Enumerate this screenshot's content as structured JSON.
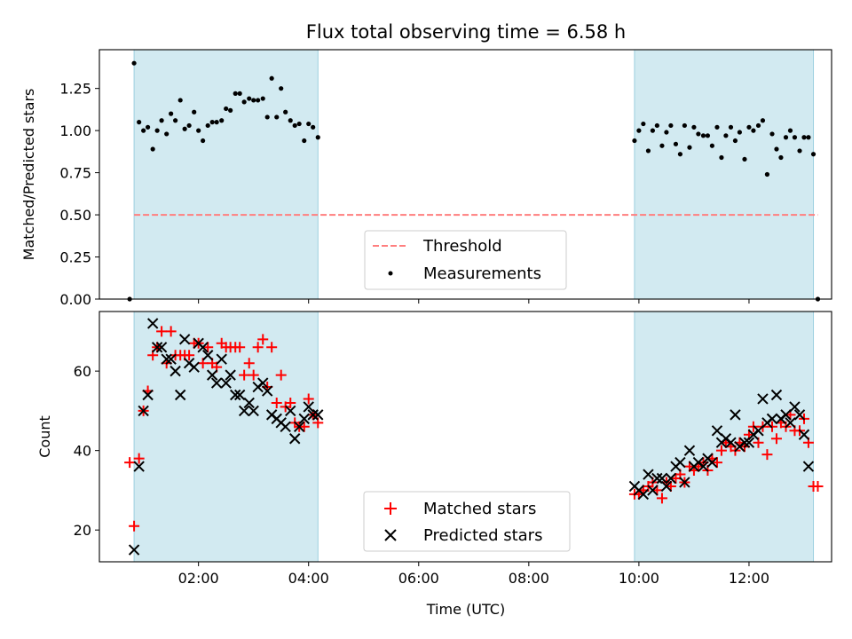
{
  "title": "Flux total observing time = 6.58 h",
  "colors": {
    "shade": "#add8e6",
    "threshold": "#ff7f7f",
    "matched": "#ff0000",
    "predicted": "#000000",
    "measurement": "#000000"
  },
  "chart_data": [
    {
      "type": "scatter",
      "ylabel": "Matched/Predicted stars",
      "ylim": [
        0,
        1.48
      ],
      "xlim_hours": [
        0.2,
        13.5
      ],
      "yticks": [
        "0.00",
        "0.25",
        "0.50",
        "0.75",
        "1.00",
        "1.25"
      ],
      "ytick_values": [
        0,
        0.25,
        0.5,
        0.75,
        1.0,
        1.25
      ],
      "shaded_intervals_hours": [
        [
          0.83,
          4.17
        ],
        [
          9.92,
          13.17
        ]
      ],
      "threshold": {
        "name": "Threshold",
        "value": 0.5,
        "x_hours": [
          0.83,
          13.25
        ]
      },
      "legend": {
        "placement": "lower-center",
        "entries": [
          "Threshold",
          "Measurements"
        ]
      },
      "series": [
        {
          "name": "Measurements",
          "points": [
            [
              0.75,
              0.0
            ],
            [
              0.83,
              1.4
            ],
            [
              0.92,
              1.05
            ],
            [
              1.0,
              1.0
            ],
            [
              1.08,
              1.02
            ],
            [
              1.17,
              0.89
            ],
            [
              1.25,
              1.0
            ],
            [
              1.33,
              1.06
            ],
            [
              1.42,
              0.98
            ],
            [
              1.5,
              1.1
            ],
            [
              1.58,
              1.06
            ],
            [
              1.67,
              1.18
            ],
            [
              1.75,
              1.01
            ],
            [
              1.83,
              1.03
            ],
            [
              1.92,
              1.11
            ],
            [
              2.0,
              1.0
            ],
            [
              2.08,
              0.94
            ],
            [
              2.17,
              1.03
            ],
            [
              2.25,
              1.05
            ],
            [
              2.33,
              1.05
            ],
            [
              2.42,
              1.06
            ],
            [
              2.5,
              1.13
            ],
            [
              2.58,
              1.12
            ],
            [
              2.67,
              1.22
            ],
            [
              2.75,
              1.22
            ],
            [
              2.83,
              1.17
            ],
            [
              2.92,
              1.19
            ],
            [
              3.0,
              1.18
            ],
            [
              3.08,
              1.18
            ],
            [
              3.17,
              1.19
            ],
            [
              3.25,
              1.08
            ],
            [
              3.33,
              1.31
            ],
            [
              3.42,
              1.08
            ],
            [
              3.5,
              1.25
            ],
            [
              3.58,
              1.11
            ],
            [
              3.67,
              1.06
            ],
            [
              3.75,
              1.03
            ],
            [
              3.83,
              1.04
            ],
            [
              3.92,
              0.94
            ],
            [
              4.0,
              1.04
            ],
            [
              4.08,
              1.02
            ],
            [
              4.17,
              0.96
            ],
            [
              9.92,
              0.94
            ],
            [
              10.0,
              1.0
            ],
            [
              10.08,
              1.04
            ],
            [
              10.17,
              0.88
            ],
            [
              10.25,
              1.0
            ],
            [
              10.33,
              1.03
            ],
            [
              10.42,
              0.91
            ],
            [
              10.5,
              0.99
            ],
            [
              10.58,
              1.03
            ],
            [
              10.67,
              0.92
            ],
            [
              10.75,
              0.86
            ],
            [
              10.83,
              1.03
            ],
            [
              10.92,
              0.9
            ],
            [
              11.0,
              1.02
            ],
            [
              11.08,
              0.98
            ],
            [
              11.17,
              0.97
            ],
            [
              11.25,
              0.97
            ],
            [
              11.33,
              0.91
            ],
            [
              11.42,
              1.02
            ],
            [
              11.5,
              0.84
            ],
            [
              11.58,
              0.97
            ],
            [
              11.67,
              1.02
            ],
            [
              11.75,
              0.94
            ],
            [
              11.83,
              0.99
            ],
            [
              11.92,
              0.83
            ],
            [
              12.0,
              1.02
            ],
            [
              12.08,
              1.0
            ],
            [
              12.17,
              1.03
            ],
            [
              12.25,
              1.06
            ],
            [
              12.33,
              0.74
            ],
            [
              12.42,
              0.98
            ],
            [
              12.5,
              0.89
            ],
            [
              12.58,
              0.84
            ],
            [
              12.67,
              0.96
            ],
            [
              12.75,
              1.0
            ],
            [
              12.83,
              0.96
            ],
            [
              12.92,
              0.88
            ],
            [
              13.0,
              0.96
            ],
            [
              13.08,
              0.96
            ],
            [
              13.17,
              0.86
            ],
            [
              13.25,
              0.0
            ]
          ]
        }
      ]
    },
    {
      "type": "scatter",
      "xlabel": "Time (UTC)",
      "ylabel": "Count",
      "ylim": [
        12,
        75
      ],
      "xlim_hours": [
        0.2,
        13.5
      ],
      "xticks": [
        "02:00",
        "04:00",
        "06:00",
        "08:00",
        "10:00",
        "12:00"
      ],
      "xtick_hours": [
        2,
        4,
        6,
        8,
        10,
        12
      ],
      "yticks": [
        "20",
        "40",
        "60"
      ],
      "ytick_values": [
        20,
        40,
        60
      ],
      "shaded_intervals_hours": [
        [
          0.83,
          4.17
        ],
        [
          9.92,
          13.17
        ]
      ],
      "legend": {
        "placement": "lower-center",
        "entries": [
          "Matched stars",
          "Predicted stars"
        ]
      },
      "series": [
        {
          "name": "Matched stars",
          "marker": "+",
          "points": [
            [
              0.75,
              37
            ],
            [
              0.83,
              21
            ],
            [
              0.92,
              38
            ],
            [
              1.0,
              50
            ],
            [
              1.08,
              55
            ],
            [
              1.17,
              64
            ],
            [
              1.25,
              66
            ],
            [
              1.33,
              70
            ],
            [
              1.42,
              62
            ],
            [
              1.5,
              70
            ],
            [
              1.58,
              64
            ],
            [
              1.67,
              64
            ],
            [
              1.75,
              64
            ],
            [
              1.83,
              64
            ],
            [
              1.92,
              67
            ],
            [
              2.0,
              67
            ],
            [
              2.08,
              62
            ],
            [
              2.17,
              66
            ],
            [
              2.25,
              62
            ],
            [
              2.33,
              61
            ],
            [
              2.42,
              67
            ],
            [
              2.5,
              66
            ],
            [
              2.58,
              66
            ],
            [
              2.67,
              66
            ],
            [
              2.75,
              66
            ],
            [
              2.83,
              59
            ],
            [
              2.92,
              62
            ],
            [
              3.0,
              59
            ],
            [
              3.08,
              66
            ],
            [
              3.17,
              68
            ],
            [
              3.25,
              56
            ],
            [
              3.33,
              66
            ],
            [
              3.42,
              52
            ],
            [
              3.5,
              59
            ],
            [
              3.58,
              51
            ],
            [
              3.67,
              52
            ],
            [
              3.75,
              47
            ],
            [
              3.83,
              46
            ],
            [
              3.92,
              46
            ],
            [
              4.0,
              53
            ],
            [
              4.08,
              49
            ],
            [
              4.17,
              47
            ],
            [
              9.92,
              29
            ],
            [
              10.0,
              29
            ],
            [
              10.08,
              30
            ],
            [
              10.17,
              31
            ],
            [
              10.25,
              32
            ],
            [
              10.33,
              30
            ],
            [
              10.42,
              28
            ],
            [
              10.5,
              32
            ],
            [
              10.58,
              31
            ],
            [
              10.67,
              33
            ],
            [
              10.75,
              34
            ],
            [
              10.83,
              32
            ],
            [
              10.92,
              36
            ],
            [
              11.0,
              35
            ],
            [
              11.08,
              36
            ],
            [
              11.17,
              37
            ],
            [
              11.25,
              35
            ],
            [
              11.33,
              38
            ],
            [
              11.42,
              37
            ],
            [
              11.5,
              40
            ],
            [
              11.58,
              42
            ],
            [
              11.67,
              41
            ],
            [
              11.75,
              40
            ],
            [
              11.83,
              42
            ],
            [
              11.92,
              41
            ],
            [
              12.0,
              44
            ],
            [
              12.08,
              46
            ],
            [
              12.17,
              42
            ],
            [
              12.25,
              46
            ],
            [
              12.33,
              39
            ],
            [
              12.42,
              46
            ],
            [
              12.5,
              43
            ],
            [
              12.58,
              47
            ],
            [
              12.67,
              46
            ],
            [
              12.75,
              49
            ],
            [
              12.83,
              45
            ],
            [
              12.92,
              45
            ],
            [
              13.0,
              48
            ],
            [
              13.08,
              42
            ],
            [
              13.17,
              31
            ],
            [
              13.25,
              31
            ]
          ]
        },
        {
          "name": "Predicted stars",
          "marker": "x",
          "points": [
            [
              0.83,
              15
            ],
            [
              0.92,
              36
            ],
            [
              1.0,
              50
            ],
            [
              1.08,
              54
            ],
            [
              1.17,
              72
            ],
            [
              1.25,
              66
            ],
            [
              1.33,
              66
            ],
            [
              1.42,
              63
            ],
            [
              1.5,
              63
            ],
            [
              1.58,
              60
            ],
            [
              1.67,
              54
            ],
            [
              1.75,
              68
            ],
            [
              1.83,
              62
            ],
            [
              1.92,
              61
            ],
            [
              2.0,
              67
            ],
            [
              2.08,
              66
            ],
            [
              2.17,
              64
            ],
            [
              2.25,
              59
            ],
            [
              2.33,
              57
            ],
            [
              2.42,
              63
            ],
            [
              2.5,
              57
            ],
            [
              2.58,
              59
            ],
            [
              2.67,
              54
            ],
            [
              2.75,
              54
            ],
            [
              2.83,
              50
            ],
            [
              2.92,
              52
            ],
            [
              3.0,
              50
            ],
            [
              3.08,
              56
            ],
            [
              3.17,
              57
            ],
            [
              3.25,
              55
            ],
            [
              3.33,
              49
            ],
            [
              3.42,
              48
            ],
            [
              3.5,
              47
            ],
            [
              3.58,
              46
            ],
            [
              3.67,
              50
            ],
            [
              3.75,
              43
            ],
            [
              3.83,
              46
            ],
            [
              3.92,
              48
            ],
            [
              4.0,
              51
            ],
            [
              4.08,
              49
            ],
            [
              4.17,
              49
            ],
            [
              9.92,
              31
            ],
            [
              10.0,
              30
            ],
            [
              10.08,
              29
            ],
            [
              10.17,
              34
            ],
            [
              10.25,
              30
            ],
            [
              10.33,
              33
            ],
            [
              10.42,
              33
            ],
            [
              10.5,
              31
            ],
            [
              10.58,
              33
            ],
            [
              10.67,
              36
            ],
            [
              10.75,
              37
            ],
            [
              10.83,
              32
            ],
            [
              10.92,
              40
            ],
            [
              11.0,
              36
            ],
            [
              11.08,
              37
            ],
            [
              11.17,
              36
            ],
            [
              11.25,
              38
            ],
            [
              11.33,
              37
            ],
            [
              11.42,
              45
            ],
            [
              11.5,
              42
            ],
            [
              11.58,
              43
            ],
            [
              11.67,
              42
            ],
            [
              11.75,
              49
            ],
            [
              11.83,
              41
            ],
            [
              11.92,
              42
            ],
            [
              12.0,
              42
            ],
            [
              12.08,
              44
            ],
            [
              12.17,
              45
            ],
            [
              12.25,
              53
            ],
            [
              12.33,
              47
            ],
            [
              12.42,
              48
            ],
            [
              12.5,
              54
            ],
            [
              12.58,
              48
            ],
            [
              12.67,
              49
            ],
            [
              12.75,
              47
            ],
            [
              12.83,
              51
            ],
            [
              12.92,
              49
            ],
            [
              13.0,
              44
            ],
            [
              13.08,
              36
            ]
          ]
        }
      ]
    }
  ]
}
